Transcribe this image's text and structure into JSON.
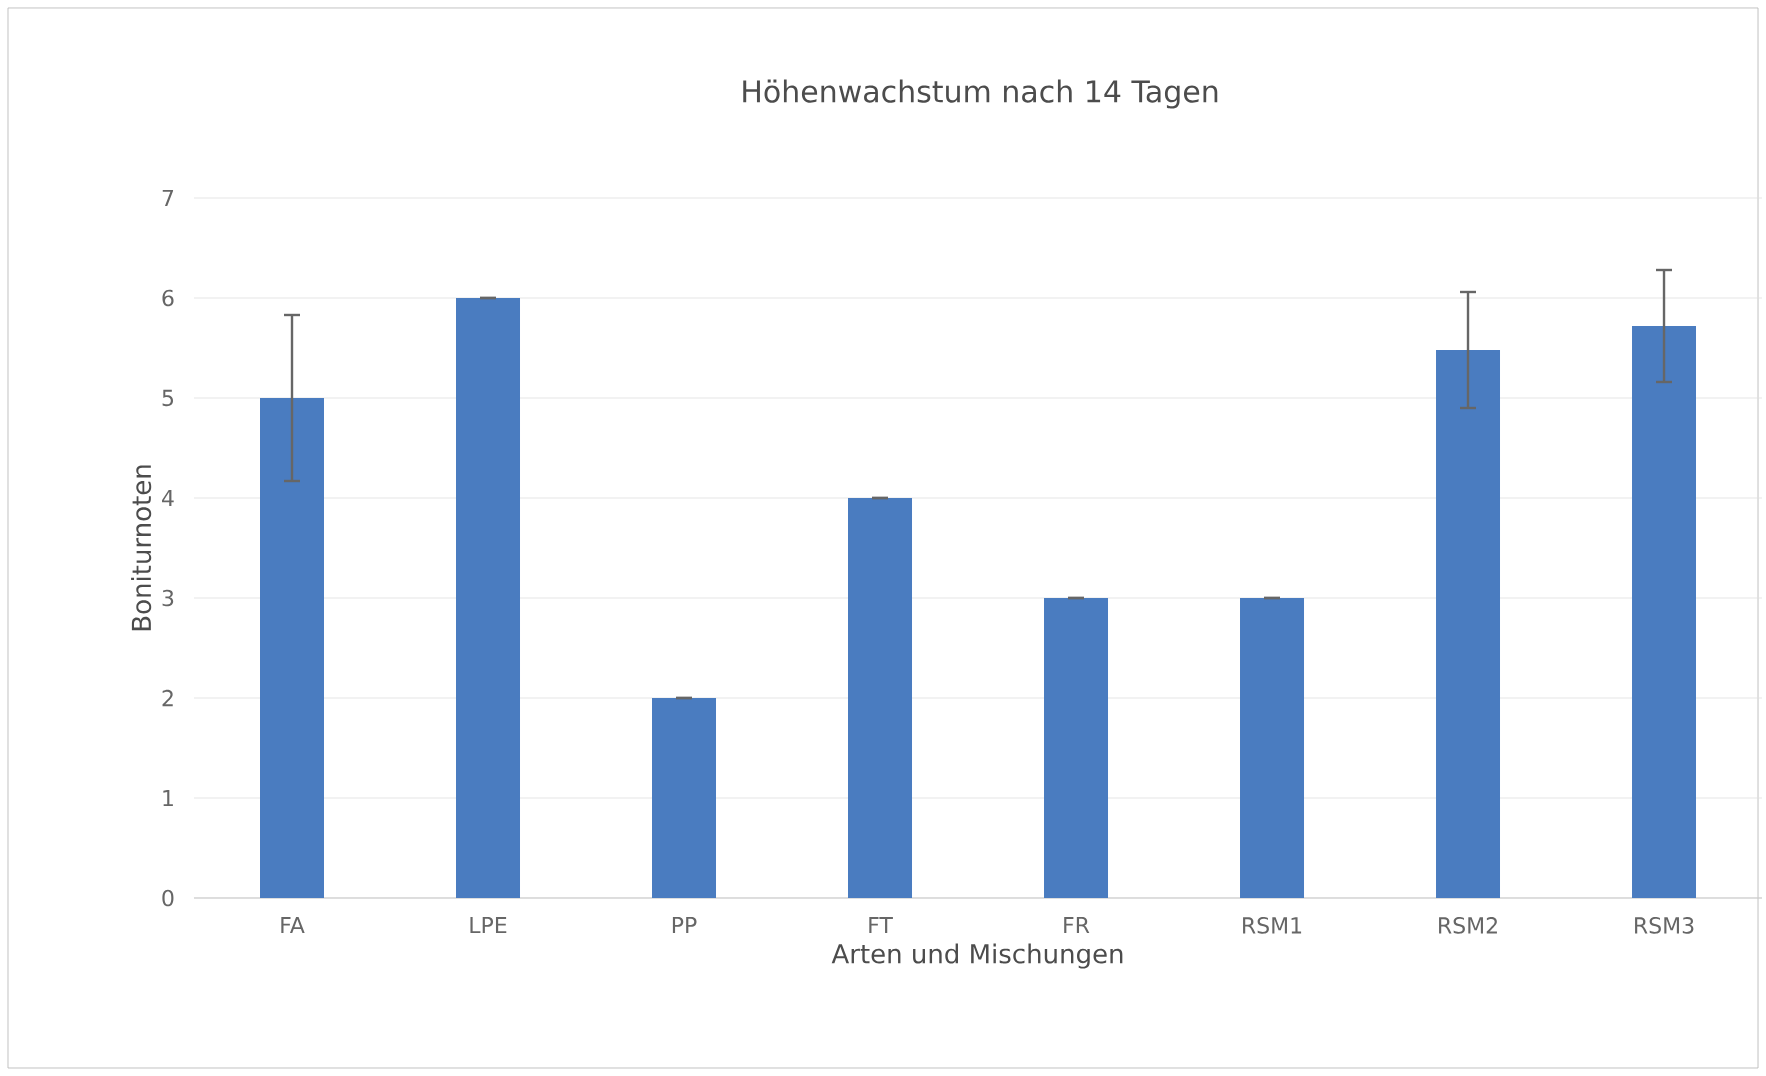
{
  "chart_data": {
    "type": "bar",
    "title": "Höhenwachstum nach 14 Tagen",
    "xlabel": "Arten und Mischungen",
    "ylabel": "Boniturnoten",
    "categories": [
      "FA",
      "LPE",
      "PP",
      "FT",
      "FR",
      "RSM1",
      "RSM2",
      "RSM3"
    ],
    "values": [
      5.0,
      6.0,
      2.0,
      4.0,
      3.0,
      3.0,
      5.48,
      5.72
    ],
    "errors": [
      0.83,
      0,
      0,
      0,
      0,
      0,
      0.58,
      0.56
    ],
    "color": "#4a7cc0",
    "ylim": [
      0,
      7
    ],
    "yticks": [
      0,
      1,
      2,
      3,
      4,
      5,
      6,
      7
    ],
    "grid": "y"
  }
}
